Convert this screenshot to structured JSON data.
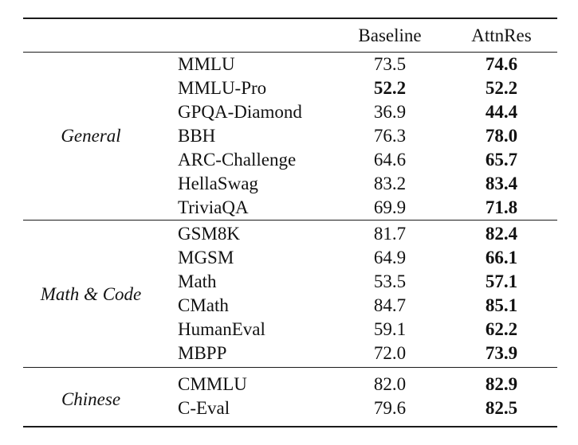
{
  "page": {
    "background": "#ffffff",
    "text_color": "#121212",
    "rule_color": "#1b1b1b"
  },
  "table": {
    "header": {
      "baseline": "Baseline",
      "attnres": "AttnRes"
    },
    "sections": [
      {
        "group": "General",
        "rows": [
          {
            "name": "MMLU",
            "baseline": "73.5",
            "attnres": "74.6",
            "bold_baseline": false,
            "bold_attnres": true
          },
          {
            "name": "MMLU-Pro",
            "baseline": "52.2",
            "attnres": "52.2",
            "bold_baseline": true,
            "bold_attnres": true
          },
          {
            "name": "GPQA-Diamond",
            "baseline": "36.9",
            "attnres": "44.4",
            "bold_baseline": false,
            "bold_attnres": true
          },
          {
            "name": "BBH",
            "baseline": "76.3",
            "attnres": "78.0",
            "bold_baseline": false,
            "bold_attnres": true
          },
          {
            "name": "ARC-Challenge",
            "baseline": "64.6",
            "attnres": "65.7",
            "bold_baseline": false,
            "bold_attnres": true
          },
          {
            "name": "HellaSwag",
            "baseline": "83.2",
            "attnres": "83.4",
            "bold_baseline": false,
            "bold_attnres": true
          },
          {
            "name": "TriviaQA",
            "baseline": "69.9",
            "attnres": "71.8",
            "bold_baseline": false,
            "bold_attnres": true
          }
        ]
      },
      {
        "group": "Math & Code",
        "rows": [
          {
            "name": "GSM8K",
            "baseline": "81.7",
            "attnres": "82.4",
            "bold_baseline": false,
            "bold_attnres": true
          },
          {
            "name": "MGSM",
            "baseline": "64.9",
            "attnres": "66.1",
            "bold_baseline": false,
            "bold_attnres": true
          },
          {
            "name": "Math",
            "baseline": "53.5",
            "attnres": "57.1",
            "bold_baseline": false,
            "bold_attnres": true
          },
          {
            "name": "CMath",
            "baseline": "84.7",
            "attnres": "85.1",
            "bold_baseline": false,
            "bold_attnres": true
          },
          {
            "name": "HumanEval",
            "baseline": "59.1",
            "attnres": "62.2",
            "bold_baseline": false,
            "bold_attnres": true
          },
          {
            "name": "MBPP",
            "baseline": "72.0",
            "attnres": "73.9",
            "bold_baseline": false,
            "bold_attnres": true
          }
        ]
      },
      {
        "group": "Chinese",
        "rows": [
          {
            "name": "CMMLU",
            "baseline": "82.0",
            "attnres": "82.9",
            "bold_baseline": false,
            "bold_attnres": true
          },
          {
            "name": "C-Eval",
            "baseline": "79.6",
            "attnres": "82.5",
            "bold_baseline": false,
            "bold_attnres": true
          }
        ]
      }
    ]
  }
}
